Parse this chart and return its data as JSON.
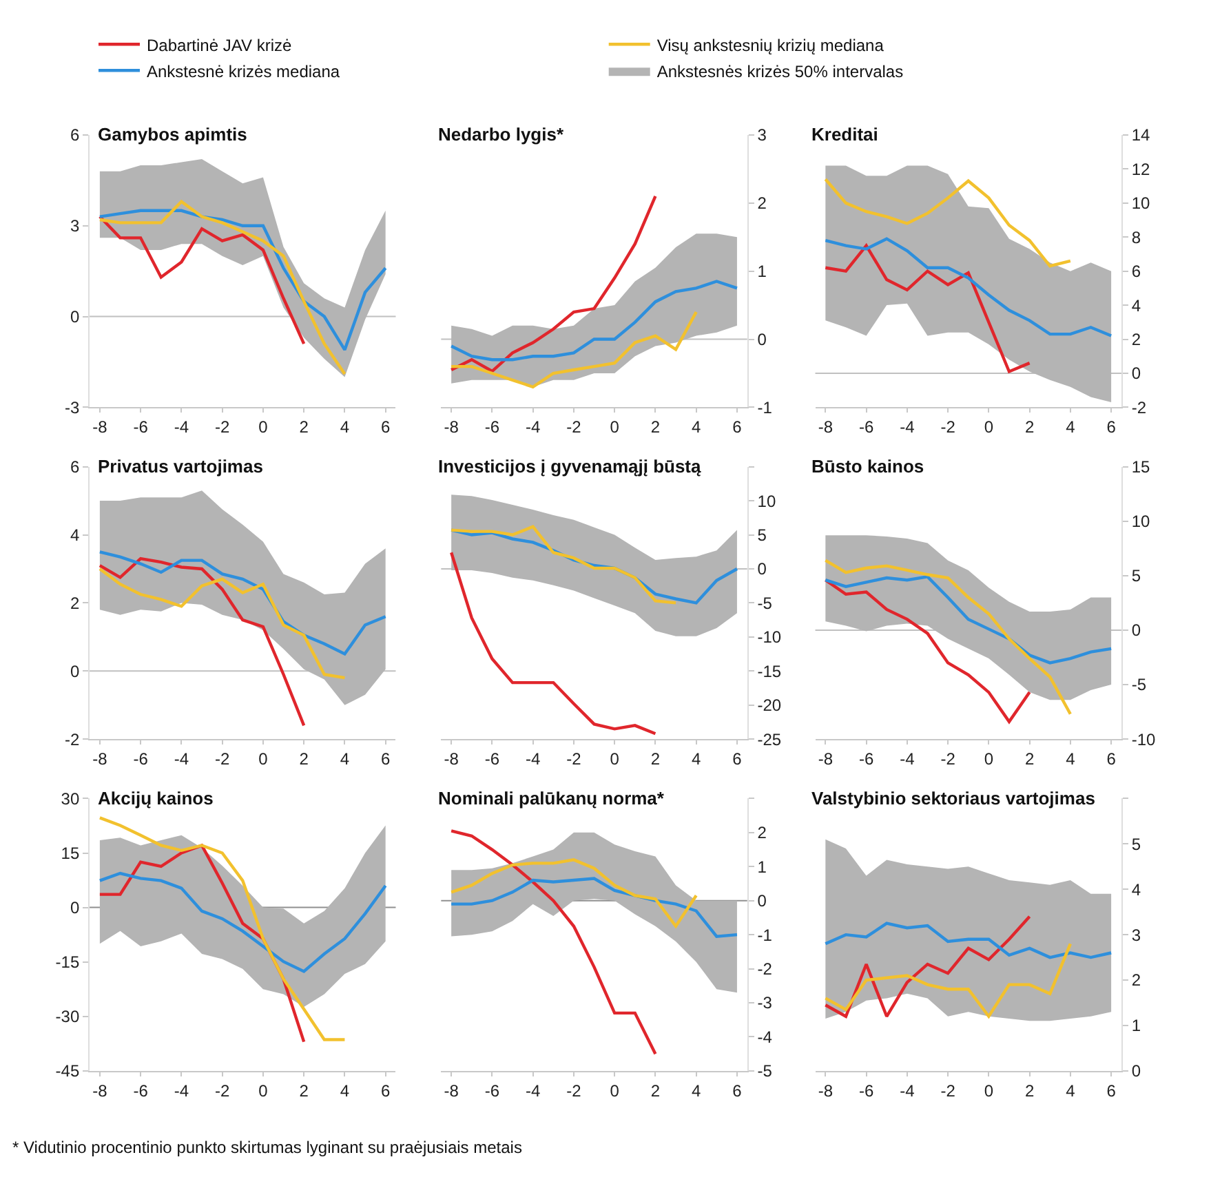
{
  "chart_data": [
    {
      "type": "line",
      "title": "Gamybos apimtis",
      "xlim": [
        -8.5,
        6.5
      ],
      "xticks": [
        -8,
        -6,
        -4,
        -2,
        0,
        2,
        4,
        6
      ],
      "ylim": [
        -3,
        6
      ],
      "yticks": [
        -3,
        0,
        3,
        6
      ],
      "legend": "top",
      "ref_lines": [
        {
          "axis": "y",
          "value": 0,
          "color": "#c0c0c0"
        }
      ],
      "annotations": [
        "* Vidutinio procentinio punkto skirtumas lyginant su praėjusiais metais"
      ],
      "series": [
        {
          "name": "Dabartinė JAV krizė",
          "color": "#e0262c",
          "x": [
            -8,
            -7,
            -6,
            -5,
            -4,
            -3,
            -2,
            -1,
            0,
            1,
            2
          ],
          "values": [
            3.3,
            2.6,
            2.6,
            1.3,
            1.8,
            2.9,
            2.5,
            2.7,
            2.2,
            0.6,
            -0.9
          ]
        },
        {
          "name": "Ankstesnė krizės mediana",
          "color": "#2e8fdc",
          "x": [
            -8,
            -7,
            -6,
            -5,
            -4,
            -3,
            -2,
            -1,
            0,
            1,
            2,
            3,
            4,
            5,
            6
          ],
          "values": [
            3.3,
            3.4,
            3.5,
            3.5,
            3.5,
            3.3,
            3.2,
            3.0,
            3.0,
            1.6,
            0.5,
            0.0,
            -1.1,
            0.8,
            1.6
          ],
          "upper": [
            4.8,
            4.8,
            5.0,
            5.0,
            5.1,
            5.2,
            4.8,
            4.4,
            4.6,
            2.3,
            1.1,
            0.6,
            0.3,
            2.2,
            3.5
          ],
          "lower": [
            2.6,
            2.6,
            2.2,
            2.2,
            2.4,
            2.4,
            2.0,
            1.7,
            2.0,
            0.3,
            -0.7,
            -1.4,
            -2.0,
            -0.1,
            1.4
          ]
        },
        {
          "name": "Visų ankstesnių krizių mediana",
          "color": "#f2c12e",
          "x": [
            -8,
            -7,
            -6,
            -5,
            -4,
            -3,
            -2,
            -1,
            0,
            1,
            2,
            3,
            4
          ],
          "values": [
            3.2,
            3.1,
            3.1,
            3.1,
            3.8,
            3.3,
            3.1,
            2.8,
            2.5,
            2.0,
            0.5,
            -0.9,
            -1.9
          ]
        },
        {
          "name": "Ankstesnės krizės 50% intervalas",
          "type": "area",
          "color": "#b4b4b4"
        }
      ]
    },
    {
      "type": "line",
      "title": "Nedarbo lygis*",
      "xlim": [
        -8.5,
        6.5
      ],
      "xticks": [
        -8,
        -6,
        -4,
        -2,
        0,
        2,
        4,
        6
      ],
      "ylim": [
        -1,
        3
      ],
      "yticks": [
        -1,
        0,
        1,
        2,
        3
      ],
      "ref_lines": [
        {
          "axis": "y",
          "value": 0,
          "color": "#c0c0c0"
        }
      ],
      "series": [
        {
          "color": "#e0262c",
          "x": [
            -8,
            -7,
            -6,
            -5,
            -4,
            -3,
            -2,
            -1,
            0,
            1,
            2
          ],
          "values": [
            -0.45,
            -0.3,
            -0.47,
            -0.2,
            -0.05,
            0.15,
            0.4,
            0.45,
            0.9,
            1.4,
            2.1
          ]
        },
        {
          "color": "#2e8fdc",
          "x": [
            -8,
            -7,
            -6,
            -5,
            -4,
            -3,
            -2,
            -1,
            0,
            1,
            2,
            3,
            4,
            5,
            6
          ],
          "values": [
            -0.1,
            -0.25,
            -0.3,
            -0.3,
            -0.25,
            -0.25,
            -0.2,
            0.0,
            0.0,
            0.25,
            0.55,
            0.7,
            0.75,
            0.85,
            0.75
          ],
          "upper": [
            0.2,
            0.15,
            0.05,
            0.2,
            0.2,
            0.15,
            0.2,
            0.45,
            0.5,
            0.85,
            1.05,
            1.35,
            1.55,
            1.55,
            1.5
          ],
          "lower": [
            -0.65,
            -0.6,
            -0.6,
            -0.6,
            -0.7,
            -0.6,
            -0.6,
            -0.5,
            -0.5,
            -0.25,
            -0.1,
            -0.05,
            0.05,
            0.1,
            0.2
          ]
        },
        {
          "color": "#f2c12e",
          "x": [
            -8,
            -7,
            -6,
            -5,
            -4,
            -3,
            -2,
            -1,
            0,
            1,
            2,
            3,
            4
          ],
          "values": [
            -0.4,
            -0.4,
            -0.5,
            -0.6,
            -0.7,
            -0.5,
            -0.45,
            -0.4,
            -0.35,
            -0.05,
            0.05,
            -0.15,
            0.4
          ]
        },
        {
          "type": "area",
          "color": "#b4b4b4"
        }
      ]
    },
    {
      "type": "line",
      "title": "Kreditai",
      "xlim": [
        -8.5,
        6.5
      ],
      "xticks": [
        -8,
        -6,
        -4,
        -2,
        0,
        2,
        4,
        6
      ],
      "ylim": [
        -2,
        14
      ],
      "yticks": [
        -2,
        0,
        2,
        4,
        6,
        8,
        10,
        12,
        14
      ],
      "ref_lines": [
        {
          "axis": "y",
          "value": 0,
          "color": "#c0c0c0"
        }
      ],
      "series": [
        {
          "color": "#e0262c",
          "x": [
            -8,
            -7,
            -6,
            -5,
            -4,
            -3,
            -2,
            -1,
            0,
            1,
            2
          ],
          "values": [
            6.2,
            6.0,
            7.5,
            5.5,
            4.9,
            6.0,
            5.2,
            5.9,
            3.0,
            0.1,
            0.6
          ]
        },
        {
          "color": "#2e8fdc",
          "x": [
            -8,
            -7,
            -6,
            -5,
            -4,
            -3,
            -2,
            -1,
            0,
            1,
            2,
            3,
            4,
            5,
            6
          ],
          "values": [
            7.8,
            7.5,
            7.3,
            7.9,
            7.2,
            6.2,
            6.2,
            5.6,
            4.6,
            3.7,
            3.1,
            2.3,
            2.3,
            2.7,
            2.2
          ],
          "upper": [
            12.2,
            12.2,
            11.6,
            11.6,
            12.2,
            12.2,
            11.7,
            9.8,
            9.7,
            7.9,
            7.3,
            6.5,
            6.0,
            6.5,
            6.0
          ],
          "lower": [
            3.1,
            2.7,
            2.2,
            4.0,
            4.1,
            2.2,
            2.4,
            2.4,
            1.7,
            0.8,
            0.1,
            -0.4,
            -0.8,
            -1.4,
            -1.7
          ]
        },
        {
          "color": "#f2c12e",
          "x": [
            -8,
            -7,
            -6,
            -5,
            -4,
            -3,
            -2,
            -1,
            0,
            1,
            2,
            3,
            4
          ],
          "values": [
            11.4,
            10.0,
            9.5,
            9.2,
            8.8,
            9.4,
            10.3,
            11.3,
            10.3,
            8.7,
            7.8,
            6.3,
            6.6
          ]
        },
        {
          "type": "area",
          "color": "#b4b4b4"
        }
      ]
    },
    {
      "type": "line",
      "title": "Privatus vartojimas",
      "xlim": [
        -8.5,
        6.5
      ],
      "xticks": [
        -8,
        -6,
        -4,
        -2,
        0,
        2,
        4,
        6
      ],
      "ylim": [
        -2,
        6
      ],
      "yticks": [
        -2,
        0,
        2,
        4,
        6
      ],
      "ref_lines": [
        {
          "axis": "y",
          "value": 0,
          "color": "#c0c0c0"
        }
      ],
      "series": [
        {
          "color": "#e0262c",
          "x": [
            -8,
            -7,
            -6,
            -5,
            -4,
            -3,
            -2,
            -1,
            0,
            1,
            2
          ],
          "values": [
            3.1,
            2.75,
            3.3,
            3.2,
            3.05,
            3.0,
            2.4,
            1.5,
            1.3,
            -0.1,
            -1.6
          ]
        },
        {
          "color": "#2e8fdc",
          "x": [
            -8,
            -7,
            -6,
            -5,
            -4,
            -3,
            -2,
            -1,
            0,
            1,
            2,
            3,
            4,
            5,
            6
          ],
          "values": [
            3.5,
            3.35,
            3.15,
            2.9,
            3.25,
            3.25,
            2.85,
            2.7,
            2.4,
            1.45,
            1.05,
            0.8,
            0.5,
            1.35,
            1.6
          ],
          "upper": [
            5.0,
            5.0,
            5.1,
            5.1,
            5.1,
            5.3,
            4.75,
            4.3,
            3.8,
            2.85,
            2.6,
            2.25,
            2.3,
            3.15,
            3.6
          ],
          "lower": [
            1.8,
            1.65,
            1.8,
            1.75,
            2.0,
            1.95,
            1.65,
            1.5,
            1.2,
            0.65,
            0.05,
            -0.25,
            -1.0,
            -0.7,
            0.05
          ]
        },
        {
          "color": "#f2c12e",
          "x": [
            -8,
            -7,
            -6,
            -5,
            -4,
            -3,
            -2,
            -1,
            0,
            1,
            2,
            3,
            4
          ],
          "values": [
            3.0,
            2.55,
            2.25,
            2.1,
            1.9,
            2.5,
            2.7,
            2.3,
            2.55,
            1.35,
            1.05,
            -0.1,
            -0.2
          ]
        },
        {
          "type": "area",
          "color": "#b4b4b4"
        }
      ]
    },
    {
      "type": "line",
      "title": "Investicijos į gyvenamąjį būstą",
      "xlim": [
        -8.5,
        6.5
      ],
      "xticks": [
        -8,
        -6,
        -4,
        -2,
        0,
        2,
        4,
        6
      ],
      "ylim": [
        -25,
        15
      ],
      "yticks": [
        -25,
        -20,
        -15,
        -10,
        -5,
        0,
        5,
        10,
        {
          "value": 15,
          "label": null
        }
      ],
      "ref_lines": [
        {
          "axis": "y",
          "value": 0,
          "color": "#c0c0c0"
        }
      ],
      "series": [
        {
          "color": "#e0262c",
          "x": [
            -8,
            -7,
            -6,
            -5,
            -4,
            -3,
            -2,
            -1,
            0,
            1,
            2
          ],
          "values": [
            2.4,
            -7.2,
            -13.2,
            -16.7,
            -16.7,
            -16.7,
            -19.8,
            -22.8,
            -23.5,
            -23.0,
            -24.2
          ]
        },
        {
          "color": "#2e8fdc",
          "x": [
            -8,
            -7,
            -6,
            -5,
            -4,
            -3,
            -2,
            -1,
            0,
            1,
            2,
            3,
            4,
            5,
            6
          ],
          "values": [
            5.7,
            5.0,
            5.3,
            4.4,
            3.9,
            2.7,
            1.3,
            0.5,
            0.1,
            -1.3,
            -3.7,
            -4.4,
            -5.0,
            -1.7,
            0
          ],
          "upper": [
            10.9,
            10.7,
            10.1,
            9.4,
            8.7,
            7.9,
            7.2,
            6.1,
            5.0,
            3.1,
            1.3,
            1.6,
            1.8,
            2.7,
            5.7
          ],
          "lower": [
            -0.2,
            -0.2,
            -0.6,
            -1.3,
            -1.7,
            -2.4,
            -3.2,
            -4.3,
            -5.4,
            -6.5,
            -9.1,
            -9.9,
            -9.9,
            -8.7,
            -6.5
          ]
        },
        {
          "color": "#f2c12e",
          "x": [
            -8,
            -7,
            -6,
            -5,
            -4,
            -3,
            -2,
            -1,
            0,
            1,
            2,
            3
          ],
          "values": [
            5.7,
            5.5,
            5.5,
            5.0,
            6.2,
            2.4,
            1.6,
            0.1,
            0.1,
            -1.3,
            -4.7,
            -5.0
          ]
        },
        {
          "type": "area",
          "color": "#b4b4b4"
        }
      ]
    },
    {
      "type": "line",
      "title": "Būsto kainos",
      "xlim": [
        -8.5,
        6.5
      ],
      "xticks": [
        -8,
        -6,
        -4,
        -2,
        0,
        2,
        4,
        6
      ],
      "ylim": [
        -10,
        15
      ],
      "yticks": [
        -10,
        -5,
        0,
        5,
        10,
        15
      ],
      "ref_lines": [
        {
          "axis": "y",
          "value": 0,
          "color": "#c0c0c0"
        }
      ],
      "series": [
        {
          "color": "#e0262c",
          "x": [
            -8,
            -7,
            -6,
            -5,
            -4,
            -3,
            -2,
            -1,
            0,
            1,
            2
          ],
          "values": [
            4.6,
            3.3,
            3.5,
            1.9,
            1.0,
            -0.3,
            -3.0,
            -4.1,
            -5.7,
            -8.4,
            -5.7
          ]
        },
        {
          "color": "#2e8fdc",
          "x": [
            -8,
            -7,
            -6,
            -5,
            -4,
            -3,
            -2,
            -1,
            0,
            1,
            2,
            3,
            4,
            5,
            6
          ],
          "values": [
            4.6,
            4.0,
            4.4,
            4.8,
            4.6,
            4.9,
            3.0,
            1.0,
            0.1,
            -0.8,
            -2.3,
            -3.0,
            -2.6,
            -2.0,
            -1.7
          ],
          "upper": [
            8.7,
            8.7,
            8.7,
            8.6,
            8.4,
            8.0,
            6.4,
            5.5,
            3.9,
            2.6,
            1.7,
            1.7,
            1.9,
            3.0,
            3.0
          ],
          "lower": [
            0.8,
            0.4,
            -0.1,
            0.4,
            0.6,
            0.4,
            -0.8,
            -1.7,
            -2.6,
            -4.1,
            -5.7,
            -6.4,
            -6.4,
            -5.5,
            -5.0
          ]
        },
        {
          "color": "#f2c12e",
          "x": [
            -8,
            -7,
            -6,
            -5,
            -4,
            -3,
            -2,
            -1,
            0,
            1,
            2,
            3,
            4
          ],
          "values": [
            6.4,
            5.3,
            5.7,
            5.9,
            5.5,
            5.1,
            4.8,
            3.0,
            1.5,
            -0.8,
            -2.6,
            -4.3,
            -7.7
          ]
        },
        {
          "type": "area",
          "color": "#b4b4b4"
        }
      ]
    },
    {
      "type": "line",
      "title": "Akcijų kainos",
      "xlim": [
        -8.5,
        6.5
      ],
      "xticks": [
        -8,
        -6,
        -4,
        -2,
        0,
        2,
        4,
        6
      ],
      "ylim": [
        -45,
        30
      ],
      "yticks": [
        -45,
        -30,
        -15,
        0,
        15,
        30
      ],
      "ref_lines": [
        {
          "axis": "y",
          "value": 0,
          "color": "#909090"
        }
      ],
      "series": [
        {
          "color": "#e0262c",
          "x": [
            -8,
            -7,
            -6,
            -5,
            -4,
            -3,
            -2,
            -1,
            0,
            1,
            2
          ],
          "values": [
            3.6,
            3.6,
            12.5,
            11.3,
            15.0,
            17.1,
            6.7,
            -4.4,
            -8.6,
            -19.7,
            -37
          ]
        },
        {
          "color": "#2e8fdc",
          "x": [
            -8,
            -7,
            -6,
            -5,
            -4,
            -3,
            -2,
            -1,
            0,
            1,
            2,
            3,
            4,
            5,
            6
          ],
          "values": [
            7.4,
            9.4,
            8.0,
            7.4,
            5.3,
            -1.0,
            -3.1,
            -6.5,
            -10.7,
            -14.9,
            -17.6,
            -12.8,
            -8.6,
            -1.7,
            6.0
          ],
          "upper": [
            18.5,
            19.2,
            17.1,
            18.5,
            19.9,
            16.4,
            11.5,
            6.0,
            0,
            -0.3,
            -4.4,
            -1.0,
            5.3,
            15.0,
            22.6
          ],
          "lower": [
            -10,
            -6.5,
            -10.7,
            -9.3,
            -7.2,
            -12.8,
            -14.2,
            -16.9,
            -22.5,
            -23.9,
            -27.4,
            -23.9,
            -18.3,
            -15.6,
            -9.3
          ]
        },
        {
          "color": "#f2c12e",
          "x": [
            -8,
            -7,
            -6,
            -5,
            -4,
            -3,
            -2,
            -1,
            0,
            1,
            2,
            3,
            4
          ],
          "values": [
            24.7,
            22.6,
            19.9,
            17.1,
            15.7,
            17.1,
            15.0,
            7.4,
            -8.6,
            -19.7,
            -28,
            -36.4,
            -36.4
          ]
        },
        {
          "type": "area",
          "color": "#b4b4b4"
        }
      ]
    },
    {
      "type": "line",
      "title": "Nominali palūkanų norma*",
      "xlim": [
        -8.5,
        6.5
      ],
      "xticks": [
        -8,
        -6,
        -4,
        -2,
        0,
        2,
        4,
        6
      ],
      "ylim": [
        -5,
        3
      ],
      "yticks": [
        -5,
        -4,
        -3,
        -2,
        -1,
        0,
        1,
        2,
        {
          "value": 3,
          "label": null
        }
      ],
      "ref_lines": [
        {
          "axis": "y",
          "value": 0,
          "color": "#909090"
        }
      ],
      "series": [
        {
          "color": "#e0262c",
          "x": [
            -8,
            -7,
            -6,
            -5,
            -4,
            -3,
            -2,
            -1,
            0,
            1,
            2
          ],
          "values": [
            2.05,
            1.9,
            1.5,
            1.05,
            0.55,
            0,
            -0.75,
            -1.95,
            -3.3,
            -3.3,
            -4.5
          ]
        },
        {
          "color": "#2e8fdc",
          "x": [
            -8,
            -7,
            -6,
            -5,
            -4,
            -3,
            -2,
            -1,
            0,
            1,
            2,
            3,
            4,
            5,
            6
          ],
          "values": [
            -0.1,
            -0.1,
            0,
            0.25,
            0.6,
            0.55,
            0.6,
            0.65,
            0.3,
            0.15,
            0.0,
            -0.1,
            -0.3,
            -1.05,
            -1.0
          ],
          "upper": [
            0.9,
            0.9,
            0.95,
            1.1,
            1.3,
            1.5,
            2.0,
            2.0,
            1.65,
            1.45,
            1.3,
            0.45,
            0,
            0,
            0
          ],
          "lower": [
            -1.05,
            -1.0,
            -0.9,
            -0.6,
            -0.1,
            -0.45,
            0,
            0.05,
            0,
            -0.4,
            -0.75,
            -1.2,
            -1.8,
            -2.6,
            -2.7
          ]
        },
        {
          "color": "#f2c12e",
          "x": [
            -8,
            -7,
            -6,
            -5,
            -4,
            -3,
            -2,
            -1,
            0,
            1,
            2,
            3,
            4
          ],
          "values": [
            0.25,
            0.45,
            0.8,
            1.05,
            1.1,
            1.1,
            1.2,
            0.95,
            0.45,
            0.15,
            0.05,
            -0.75,
            0.15
          ]
        },
        {
          "type": "area",
          "color": "#b4b4b4"
        }
      ]
    },
    {
      "type": "line",
      "title": "Valstybinio sektoriaus vartojimas",
      "xlim": [
        -8.5,
        6.5
      ],
      "xticks": [
        -8,
        -6,
        -4,
        -2,
        0,
        2,
        4,
        6
      ],
      "ylim": [
        0,
        6
      ],
      "yticks": [
        0,
        1,
        2,
        3,
        4,
        5,
        {
          "value": 6,
          "label": null
        }
      ],
      "series": [
        {
          "color": "#e0262c",
          "x": [
            -8,
            -7,
            -6,
            -5,
            -4,
            -3,
            -2,
            -1,
            0,
            1,
            2
          ],
          "values": [
            1.45,
            1.2,
            2.35,
            1.2,
            1.95,
            2.35,
            2.15,
            2.7,
            2.45,
            2.9,
            3.4
          ]
        },
        {
          "color": "#2e8fdc",
          "x": [
            -8,
            -7,
            -6,
            -5,
            -4,
            -3,
            -2,
            -1,
            0,
            1,
            2,
            3,
            4,
            5,
            6
          ],
          "values": [
            2.8,
            3.0,
            2.95,
            3.25,
            3.15,
            3.2,
            2.85,
            2.9,
            2.9,
            2.55,
            2.7,
            2.5,
            2.6,
            2.5,
            2.6
          ],
          "upper": [
            5.1,
            4.9,
            4.3,
            4.65,
            4.55,
            4.5,
            4.45,
            4.5,
            4.35,
            4.2,
            4.15,
            4.1,
            4.2,
            3.9,
            3.9
          ],
          "lower": [
            1.15,
            1.3,
            1.55,
            1.6,
            1.7,
            1.6,
            1.2,
            1.3,
            1.2,
            1.15,
            1.1,
            1.1,
            1.15,
            1.2,
            1.3
          ]
        },
        {
          "color": "#f2c12e",
          "x": [
            -8,
            -7,
            -6,
            -5,
            -4,
            -3,
            -2,
            -1,
            0,
            1,
            2,
            3,
            4
          ],
          "values": [
            1.6,
            1.35,
            2.0,
            2.05,
            2.1,
            1.9,
            1.8,
            1.8,
            1.2,
            1.9,
            1.9,
            1.7,
            2.8
          ]
        },
        {
          "type": "area",
          "color": "#b4b4b4"
        }
      ]
    }
  ]
}
